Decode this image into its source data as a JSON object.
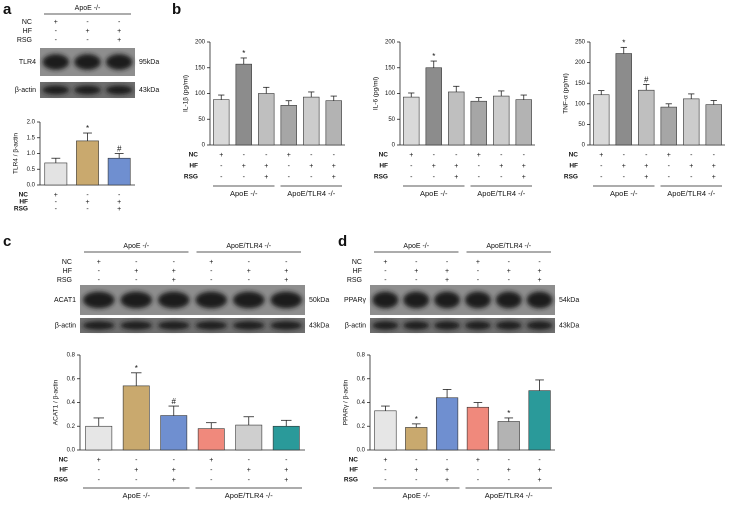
{
  "panel_labels": [
    "a",
    "b",
    "c",
    "d"
  ],
  "blots": [
    {
      "headers": [
        "ApoE -/-"
      ],
      "conditions": [
        {
          "name": "NC",
          "signs": [
            "+",
            "-",
            "-"
          ]
        },
        {
          "name": "HF",
          "signs": [
            "-",
            "+",
            "+"
          ]
        },
        {
          "name": "RSG",
          "signs": [
            "-",
            "-",
            "+"
          ]
        }
      ],
      "bands": [
        {
          "name": "TLR4",
          "size": "95kDa"
        },
        {
          "name": "β-actin",
          "size": "43kDa"
        }
      ]
    },
    {
      "headers": [
        "ApoE -/-",
        "ApoE/TLR4 -/-"
      ],
      "conditions": [
        {
          "name": "NC",
          "signs": [
            "+",
            "-",
            "-",
            "+",
            "-",
            "-"
          ]
        },
        {
          "name": "HF",
          "signs": [
            "-",
            "+",
            "+",
            "-",
            "+",
            "+"
          ]
        },
        {
          "name": "RSG",
          "signs": [
            "-",
            "-",
            "+",
            "-",
            "-",
            "+"
          ]
        }
      ],
      "bands": [
        {
          "name": "ACAT1",
          "size": "50kDa"
        },
        {
          "name": "β-actin",
          "size": "43kDa"
        }
      ]
    },
    {
      "headers": [
        "ApoE -/-",
        "ApoE/TLR4 -/-"
      ],
      "conditions": [
        {
          "name": "NC",
          "signs": [
            "+",
            "-",
            "-",
            "+",
            "-",
            "-"
          ]
        },
        {
          "name": "HF",
          "signs": [
            "-",
            "+",
            "+",
            "-",
            "+",
            "+"
          ]
        },
        {
          "name": "RSG",
          "signs": [
            "-",
            "-",
            "+",
            "-",
            "-",
            "+"
          ]
        }
      ],
      "bands": [
        {
          "name": "PPARγ",
          "size": "54kDa"
        },
        {
          "name": "β-actin",
          "size": "43kDa"
        }
      ]
    }
  ],
  "chart_data": [
    {
      "type": "bar",
      "ylabel": "TLR4 / β-actin",
      "ylim": [
        0,
        2
      ],
      "yticks": [
        {
          "value": 0,
          "label": "0.0"
        },
        0.5,
        {
          "value": 1,
          "label": "1.0"
        },
        1.5,
        {
          "value": 2,
          "label": "2.0"
        }
      ],
      "values": [
        0.7,
        1.4,
        0.85
      ],
      "errors": [
        0.15,
        0.25,
        0.15
      ],
      "colors": [
        "#e3e3e3",
        "#c9a96e",
        "#6f8fd0"
      ],
      "markers": [
        null,
        "*",
        "#"
      ],
      "conditions": [
        {
          "name": "NC",
          "signs": [
            "+",
            "-",
            "-"
          ]
        },
        {
          "name": "HF",
          "signs": [
            "-",
            "+",
            "+"
          ]
        },
        {
          "name": "RSG",
          "signs": [
            "-",
            "-",
            "+"
          ]
        }
      ]
    },
    {
      "type": "bar",
      "ylabel": "IL-1β (pg/ml)",
      "ylim": [
        0,
        200
      ],
      "yticks": [
        0,
        50,
        100,
        150,
        200
      ],
      "values": [
        88,
        157,
        100,
        77,
        93,
        86
      ],
      "errors": [
        9,
        12,
        12,
        9,
        10,
        9
      ],
      "colors": [
        "#d9d9d9",
        "#8c8c8c",
        "#bfbfbf",
        "#a6a6a6",
        "#cccccc",
        "#b3b3b3"
      ],
      "markers": [
        null,
        "*",
        null,
        null,
        null,
        null
      ],
      "conditions": [
        {
          "name": "NC",
          "signs": [
            "+",
            "-",
            "-",
            "+",
            "-",
            "-"
          ]
        },
        {
          "name": "HF",
          "signs": [
            "-",
            "+",
            "+",
            "-",
            "+",
            "+"
          ]
        },
        {
          "name": "RSG",
          "signs": [
            "-",
            "-",
            "+",
            "-",
            "-",
            "+"
          ]
        }
      ],
      "groups": [
        "ApoE -/-",
        "ApoE/TLR4 -/-"
      ]
    },
    {
      "type": "bar",
      "ylabel": "IL-6 (pg/ml)",
      "ylim": [
        0,
        200
      ],
      "yticks": [
        0,
        50,
        100,
        150,
        200
      ],
      "values": [
        93,
        150,
        103,
        85,
        95,
        88
      ],
      "errors": [
        8,
        13,
        11,
        7,
        10,
        9
      ],
      "colors": [
        "#d9d9d9",
        "#8c8c8c",
        "#bfbfbf",
        "#a6a6a6",
        "#cccccc",
        "#b3b3b3"
      ],
      "markers": [
        null,
        "*",
        null,
        null,
        null,
        null
      ],
      "conditions": [
        {
          "name": "NC",
          "signs": [
            "+",
            "-",
            "-",
            "+",
            "-",
            "-"
          ]
        },
        {
          "name": "HF",
          "signs": [
            "-",
            "+",
            "+",
            "-",
            "+",
            "+"
          ]
        },
        {
          "name": "RSG",
          "signs": [
            "-",
            "-",
            "+",
            "-",
            "-",
            "+"
          ]
        }
      ],
      "groups": [
        "ApoE -/-",
        "ApoE/TLR4 -/-"
      ]
    },
    {
      "type": "bar",
      "ylabel": "TNF-α (pg/ml)",
      "ylim": [
        0,
        250
      ],
      "yticks": [
        0,
        50,
        100,
        150,
        200,
        250
      ],
      "values": [
        122,
        222,
        133,
        92,
        112,
        98
      ],
      "errors": [
        10,
        15,
        14,
        8,
        12,
        10
      ],
      "colors": [
        "#d9d9d9",
        "#8c8c8c",
        "#bfbfbf",
        "#a6a6a6",
        "#cccccc",
        "#b3b3b3"
      ],
      "markers": [
        null,
        "*",
        "#",
        null,
        null,
        null
      ],
      "conditions": [
        {
          "name": "NC",
          "signs": [
            "+",
            "-",
            "-",
            "+",
            "-",
            "-"
          ]
        },
        {
          "name": "HF",
          "signs": [
            "-",
            "+",
            "+",
            "-",
            "+",
            "+"
          ]
        },
        {
          "name": "RSG",
          "signs": [
            "-",
            "-",
            "+",
            "-",
            "-",
            "+"
          ]
        }
      ],
      "groups": [
        "ApoE -/-",
        "ApoE/TLR4 -/-"
      ]
    },
    {
      "type": "bar",
      "ylabel": "ACAT1 / β-actin",
      "ylim": [
        0,
        0.8
      ],
      "yticks": [
        {
          "value": 0,
          "label": "0.0"
        },
        0.2,
        0.4,
        0.6,
        0.8
      ],
      "values": [
        0.2,
        0.54,
        0.29,
        0.18,
        0.21,
        0.2
      ],
      "errors": [
        0.07,
        0.11,
        0.08,
        0.05,
        0.07,
        0.05
      ],
      "colors": [
        "#e6e6e6",
        "#c9a96e",
        "#6f8fd0",
        "#f0897c",
        "#cfcfcf",
        "#2a9a9a"
      ],
      "markers": [
        null,
        "*",
        "#",
        null,
        null,
        null
      ],
      "conditions": [
        {
          "name": "NC",
          "signs": [
            "+",
            "-",
            "-",
            "+",
            "-",
            "-"
          ]
        },
        {
          "name": "HF",
          "signs": [
            "-",
            "+",
            "+",
            "-",
            "+",
            "+"
          ]
        },
        {
          "name": "RSG",
          "signs": [
            "-",
            "-",
            "+",
            "-",
            "-",
            "+"
          ]
        }
      ],
      "groups": [
        "ApoE -/-",
        "ApoE/TLR4 -/-"
      ]
    },
    {
      "type": "bar",
      "ylabel": "PPARγ / β-actin",
      "ylim": [
        0,
        0.8
      ],
      "yticks": [
        {
          "value": 0,
          "label": "0.0"
        },
        0.2,
        0.4,
        0.6,
        0.8
      ],
      "values": [
        0.33,
        0.19,
        0.44,
        0.36,
        0.24,
        0.5
      ],
      "errors": [
        0.04,
        0.03,
        0.07,
        0.04,
        0.03,
        0.09
      ],
      "colors": [
        "#e6e6e6",
        "#c9a96e",
        "#6f8fd0",
        "#f0897c",
        "#b3b3b3",
        "#2a9a9a"
      ],
      "markers": [
        null,
        "*",
        null,
        null,
        "*",
        null
      ],
      "conditions": [
        {
          "name": "NC",
          "signs": [
            "+",
            "-",
            "-",
            "+",
            "-",
            "-"
          ]
        },
        {
          "name": "HF",
          "signs": [
            "-",
            "+",
            "+",
            "-",
            "+",
            "+"
          ]
        },
        {
          "name": "RSG",
          "signs": [
            "-",
            "-",
            "+",
            "-",
            "-",
            "+"
          ]
        }
      ],
      "groups": [
        "ApoE -/-",
        "ApoE/TLR4 -/-"
      ]
    }
  ]
}
